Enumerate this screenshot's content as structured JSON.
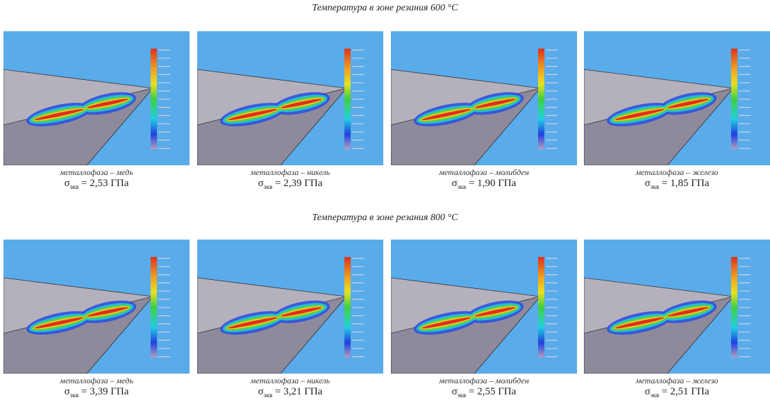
{
  "sections": [
    {
      "title": "Температура в зоне резания 600 °С",
      "panels": [
        {
          "caption": "металлофаза – медь",
          "symbol": "σ",
          "sub": "экв",
          "value": "= 2,53 ГПа"
        },
        {
          "caption": "металлофаза – никель",
          "symbol": "σ",
          "sub": "экв",
          "value": "= 2,39 ГПа"
        },
        {
          "caption": "металлофаза – молибден",
          "symbol": "σ",
          "sub": "экв",
          "value": "= 1,90 ГПа"
        },
        {
          "caption": "металлофаза – железо",
          "symbol": "σ",
          "sub": "экв",
          "value": "= 1,85 ГПа"
        }
      ]
    },
    {
      "title": "Температура в зоне резания 800 °С",
      "panels": [
        {
          "caption": "металлофаза – медь",
          "symbol": "σ",
          "sub": "экв",
          "value": "= 3,39 ГПа"
        },
        {
          "caption": "металлофаза – никель",
          "symbol": "σ",
          "sub": "экв",
          "value": "= 3,21 ГПа"
        },
        {
          "caption": "металлофаза – молибден",
          "symbol": "σ",
          "sub": "экв",
          "value": "= 2,55 ГПа"
        },
        {
          "caption": "металлофаза – железо",
          "symbol": "σ",
          "sub": "экв",
          "value": "= 2,51 ГПа"
        }
      ]
    }
  ]
}
